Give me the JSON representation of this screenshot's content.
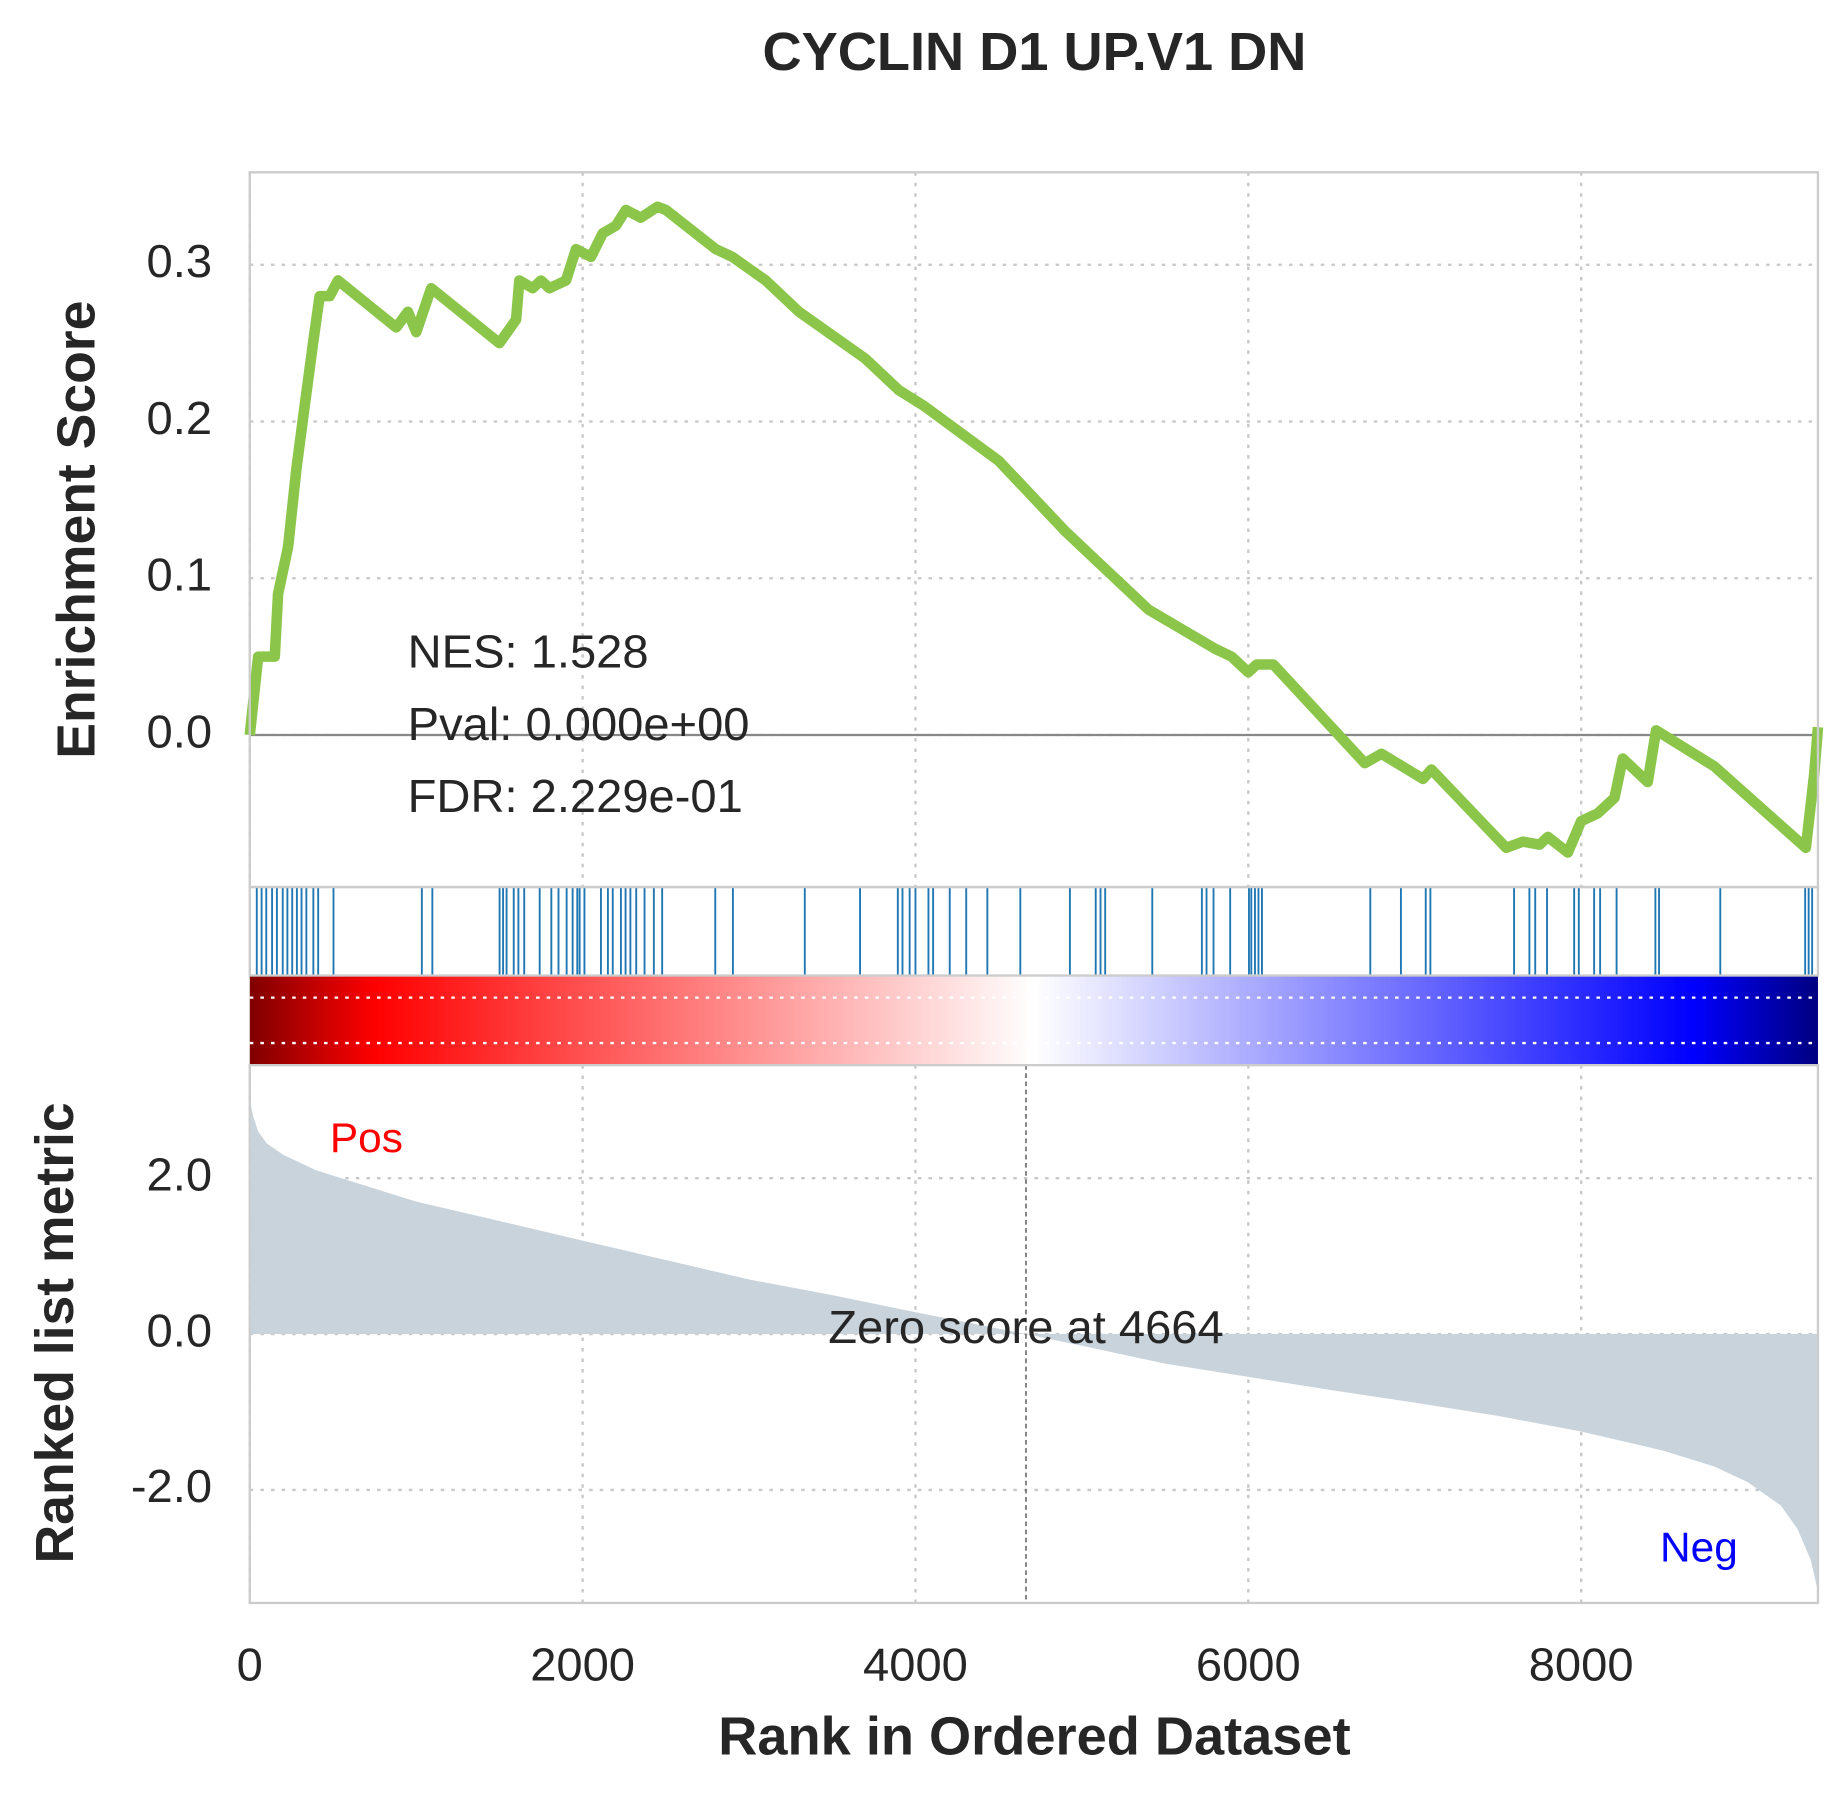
{
  "chart_data": [
    {
      "type": "line",
      "title": "CYCLIN D1 UP.V1 DN",
      "ylabel": "Enrichment Score",
      "annotations": [
        "NES: 1.528",
        "Pval: 0.000e+00",
        "FDR: 2.229e-01"
      ],
      "color": "#8bc64a",
      "grid": true,
      "xlim": [
        0,
        9423
      ],
      "xticks": [
        0,
        2000,
        4000,
        6000,
        8000
      ],
      "ylim": [
        -0.097,
        0.359
      ],
      "yticks": [
        {
          "value": 0,
          "label": "0.0"
        },
        0.1,
        0.2,
        0.3
      ],
      "x": [
        0,
        50,
        150,
        170,
        230,
        280,
        330,
        380,
        420,
        480,
        530,
        880,
        950,
        1000,
        1090,
        1500,
        1600,
        1620,
        1700,
        1750,
        1800,
        1900,
        1960,
        2050,
        2120,
        2200,
        2260,
        2350,
        2450,
        2500,
        2800,
        2900,
        3100,
        3300,
        3700,
        3900,
        4050,
        4500,
        4900,
        5100,
        5400,
        5800,
        5900,
        6000,
        6050,
        6150,
        6700,
        6800,
        7050,
        7100,
        7550,
        7650,
        7750,
        7800,
        7920,
        8000,
        8100,
        8200,
        8250,
        8400,
        8450,
        8800,
        9350,
        9400,
        9423
      ],
      "values": [
        0,
        0.05,
        0.05,
        0.09,
        0.12,
        0.17,
        0.21,
        0.25,
        0.28,
        0.28,
        0.29,
        0.26,
        0.27,
        0.257,
        0.285,
        0.25,
        0.265,
        0.29,
        0.285,
        0.29,
        0.285,
        0.29,
        0.31,
        0.305,
        0.32,
        0.325,
        0.335,
        0.33,
        0.337,
        0.335,
        0.31,
        0.305,
        0.29,
        0.27,
        0.24,
        0.22,
        0.21,
        0.175,
        0.13,
        0.11,
        0.08,
        0.055,
        0.05,
        0.04,
        0.045,
        0.045,
        -0.018,
        -0.012,
        -0.028,
        -0.022,
        -0.072,
        -0.068,
        -0.07,
        -0.065,
        -0.075,
        -0.055,
        -0.05,
        -0.04,
        -0.015,
        -0.03,
        0.003,
        -0.02,
        -0.072,
        -0.025,
        0.005
      ]
    },
    {
      "type": "rug",
      "color": "#1f77b4",
      "xlim": [
        0,
        9423
      ],
      "x": [
        42,
        71,
        99,
        134,
        163,
        198,
        226,
        255,
        283,
        311,
        340,
        382,
        411,
        503,
        1034,
        1097,
        1501,
        1522,
        1543,
        1586,
        1614,
        1649,
        1742,
        1812,
        1855,
        1904,
        1940,
        1968,
        1982,
        2011,
        2110,
        2152,
        2181,
        2230,
        2258,
        2287,
        2322,
        2372,
        2428,
        2478,
        2797,
        2903,
        3335,
        3667,
        3894,
        3922,
        3965,
        4000,
        4078,
        4106,
        4206,
        4305,
        4432,
        4630,
        4928,
        5083,
        5112,
        5140,
        5423,
        5721,
        5749,
        5791,
        5891,
        6004,
        6018,
        6040,
        6061,
        6082,
        6733,
        6917,
        7066,
        7094,
        7597,
        7689,
        7724,
        7795,
        7958,
        7986,
        8078,
        8114,
        8213,
        8446,
        8468,
        8836,
        9346,
        9367,
        9388
      ]
    },
    {
      "type": "area",
      "ylabel": "Ranked list metric",
      "xlabel": "Rank in Ordered Dataset",
      "color": "#c8d3dc",
      "grid": true,
      "xlim": [
        0,
        9423
      ],
      "xticks": [
        0,
        2000,
        4000,
        6000,
        8000
      ],
      "ylim": [
        -3.45,
        3.45
      ],
      "yticks": [
        {
          "value": -2,
          "label": "-2.0"
        },
        {
          "value": 0,
          "label": "0.0"
        },
        {
          "value": 2,
          "label": "2.0"
        }
      ],
      "zero_rank": 4664,
      "annotation": "Zero score at 4664",
      "pos_label": "Pos",
      "neg_label": "Neg",
      "x": [
        0,
        20,
        50,
        100,
        200,
        400,
        700,
        1000,
        1500,
        2000,
        2500,
        3000,
        3500,
        4000,
        4664,
        5000,
        5500,
        6000,
        6500,
        7000,
        7500,
        8000,
        8500,
        8800,
        9000,
        9200,
        9300,
        9380,
        9423
      ],
      "values": [
        3.0,
        2.8,
        2.6,
        2.45,
        2.3,
        2.1,
        1.9,
        1.7,
        1.45,
        1.2,
        0.95,
        0.7,
        0.5,
        0.28,
        0,
        -0.15,
        -0.38,
        -0.55,
        -0.72,
        -0.88,
        -1.05,
        -1.25,
        -1.5,
        -1.7,
        -1.9,
        -2.2,
        -2.5,
        -2.9,
        -3.3
      ]
    }
  ]
}
